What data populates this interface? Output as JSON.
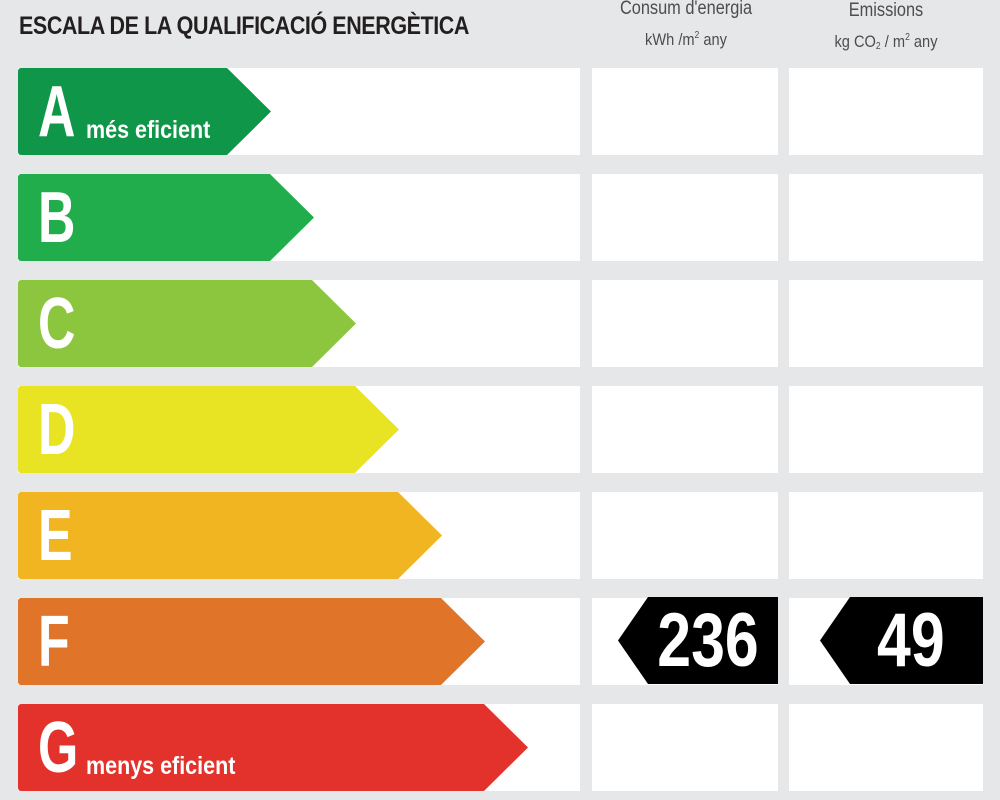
{
  "title": "ESCALA DE LA QUALIFICACIÓ ENERGÈTICA",
  "columns": {
    "energy": {
      "title": "Consum d'energia",
      "unit_pre": "kWh /m",
      "unit_sup": "2",
      "unit_post": " any"
    },
    "emissions": {
      "title": "Emissions",
      "unit_pre": "kg CO",
      "unit_sub": "2",
      "unit_mid": " / m",
      "unit_sup": "2",
      "unit_post": " any"
    }
  },
  "ratings": [
    {
      "letter": "A",
      "label": "més eficient",
      "color": "#0f9648"
    },
    {
      "letter": "B",
      "label": "",
      "color": "#21ad4b"
    },
    {
      "letter": "C",
      "label": "",
      "color": "#8cc63f"
    },
    {
      "letter": "D",
      "label": "",
      "color": "#e8e423"
    },
    {
      "letter": "E",
      "label": "",
      "color": "#f0b520"
    },
    {
      "letter": "F",
      "label": "",
      "color": "#e07429"
    },
    {
      "letter": "G",
      "label": "menys eficient",
      "color": "#e2322b"
    }
  ],
  "selected": {
    "rating": "F",
    "energy_value": "236",
    "emissions_value": "49"
  }
}
